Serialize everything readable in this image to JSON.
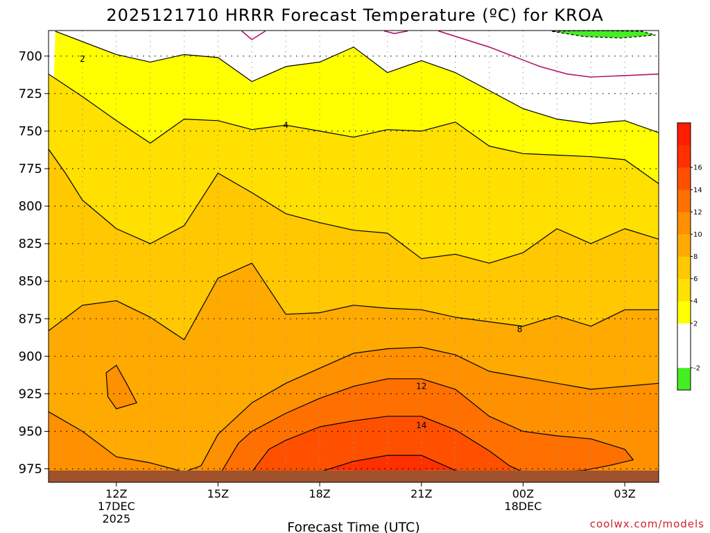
{
  "chart_data": {
    "type": "heatmap",
    "title": "2025121710 HRRR Forecast Temperature (ºC) for KROA",
    "xlabel": "Forecast Time (UTC)",
    "ylabel": "",
    "watermark": "coolwx.com/models",
    "xlim": [
      10.0,
      28.0
    ],
    "ylim": [
      683,
      984
    ],
    "x_ticks": [
      {
        "value": 12,
        "line1": "12Z",
        "line2": "17DEC",
        "line3": "2025"
      },
      {
        "value": 15,
        "line1": "15Z",
        "line2": "",
        "line3": ""
      },
      {
        "value": 18,
        "line1": "18Z",
        "line2": "",
        "line3": ""
      },
      {
        "value": 21,
        "line1": "21Z",
        "line2": "",
        "line3": ""
      },
      {
        "value": 24,
        "line1": "00Z",
        "line2": "18DEC",
        "line3": ""
      },
      {
        "value": 27,
        "line1": "03Z",
        "line2": "",
        "line3": ""
      }
    ],
    "y_ticks": [
      700,
      725,
      750,
      775,
      800,
      825,
      850,
      875,
      900,
      925,
      950,
      975
    ],
    "ground_level_hpa": 977,
    "colorbar": {
      "levels": [
        -4,
        -2,
        0,
        2,
        4,
        6,
        8,
        10,
        12,
        14,
        16,
        18,
        20
      ],
      "labels": [
        "-2",
        "2",
        "4",
        "6",
        "8",
        "10",
        "12",
        "14",
        "16"
      ],
      "colors": [
        "#44ee22",
        "#ffffff",
        "#ffffff",
        "#ffff00",
        "#ffe000",
        "#ffc800",
        "#ffaa00",
        "#ff9000",
        "#ff7000",
        "#ff5000",
        "#ff3000",
        "#ff1c00"
      ]
    },
    "contour_labels": [
      {
        "text": "2",
        "x": 11.0,
        "y": 702
      },
      {
        "text": "4",
        "x": 17.0,
        "y": 746
      },
      {
        "text": "8",
        "x": 23.9,
        "y": 882
      },
      {
        "text": "12",
        "x": 21.0,
        "y": 920
      },
      {
        "text": "14",
        "x": 21.0,
        "y": 946
      }
    ],
    "contours": [
      {
        "name": "contour-minus-2",
        "level": -2,
        "closed": true,
        "x": [
          24.85,
          25.8,
          26.9,
          27.9,
          27.5,
          26.5,
          25.5,
          24.85
        ],
        "y": [
          683.5,
          687,
          688,
          686,
          683.5,
          683.2,
          683.2,
          683.5
        ]
      },
      {
        "name": "contour-0-left",
        "level": 0,
        "closed": false,
        "x": [
          15.7,
          16.0,
          16.4
        ],
        "y": [
          683.3,
          689,
          683.3
        ]
      },
      {
        "name": "contour-0-center",
        "level": 0,
        "closed": false,
        "x": [
          19.9,
          20.2,
          20.6
        ],
        "y": [
          683.3,
          685,
          683.3
        ]
      },
      {
        "name": "contour-0-right",
        "level": 0,
        "closed": false,
        "x": [
          21.5,
          23.0,
          24.5,
          25.3,
          26.0,
          27.0,
          28.0
        ],
        "y": [
          683.3,
          694,
          707,
          712,
          714,
          713,
          712
        ]
      },
      {
        "name": "contour-2",
        "level": 2,
        "closed": false,
        "x": [
          10.2,
          12.0,
          13.0,
          14.0,
          15.0,
          16.0,
          17.0,
          18.0,
          19.0,
          20.0,
          21.0,
          22.0,
          23.0,
          24.0,
          25.0,
          26.0,
          27.0,
          28.0
        ],
        "y": [
          683.5,
          699,
          704,
          699,
          701,
          717,
          707,
          704,
          694,
          711,
          703,
          711,
          723,
          735,
          742,
          745,
          743,
          751
        ]
      },
      {
        "name": "contour-4",
        "level": 4,
        "closed": false,
        "x": [
          10.0,
          11.0,
          12.0,
          13.0,
          14.0,
          15.0,
          16.0,
          17.0,
          18.0,
          19.0,
          20.0,
          21.0,
          22.0,
          23.0,
          24.0,
          25.0,
          26.0,
          27.0,
          28.0
        ],
        "y": [
          712,
          727,
          743,
          758,
          742,
          743,
          749,
          746,
          750,
          754,
          749,
          750,
          744,
          760,
          765,
          766,
          767,
          769,
          785
        ]
      },
      {
        "name": "contour-6",
        "level": 6,
        "closed": false,
        "x": [
          10.0,
          10.5,
          11.0,
          12.0,
          13.0,
          14.0,
          15.0,
          16.0,
          17.0,
          18.0,
          19.0,
          20.0,
          21.0,
          22.0,
          23.0,
          24.0,
          25.0,
          26.0,
          27.0,
          28.0
        ],
        "y": [
          762,
          778,
          796,
          815,
          825,
          813,
          778,
          791,
          805,
          811,
          816,
          818,
          835,
          832,
          838,
          831,
          815,
          825,
          815,
          822
        ]
      },
      {
        "name": "contour-8",
        "level": 8,
        "closed": false,
        "x": [
          10.0,
          11.0,
          12.0,
          13.0,
          14.0,
          15.0,
          16.0,
          17.0,
          18.0,
          19.0,
          20.0,
          21.0,
          22.0,
          23.0,
          24.0,
          25.0,
          26.0,
          27.0,
          28.0
        ],
        "y": [
          883,
          866,
          863,
          874,
          889,
          848,
          838,
          872,
          871,
          866,
          868,
          869,
          874,
          877,
          880,
          873,
          880,
          869,
          869
        ]
      },
      {
        "name": "contour-10-main",
        "level": 10,
        "closed": false,
        "x": [
          10.0,
          11.0,
          12.0,
          13.0,
          14.0,
          14.5,
          15.0,
          16.0,
          17.0,
          18.0,
          19.0,
          20.0,
          21.0,
          22.0,
          23.0,
          24.0,
          25.0,
          26.0,
          27.0,
          28.0
        ],
        "y": [
          937,
          950,
          967,
          971,
          977,
          973,
          952,
          931,
          918,
          908,
          898,
          895,
          894,
          899,
          910,
          914,
          918,
          922,
          920,
          918
        ]
      },
      {
        "name": "contour-10-island",
        "level": 10,
        "closed": true,
        "x": [
          11.7,
          12.0,
          12.3,
          12.6,
          12.0,
          11.75,
          11.7
        ],
        "y": [
          911,
          906,
          918,
          931,
          935,
          927,
          911
        ]
      },
      {
        "name": "contour-12",
        "level": 12,
        "closed": false,
        "x": [
          15.1,
          15.6,
          16.0,
          17.0,
          18.0,
          19.0,
          20.0,
          21.0,
          22.0,
          23.0,
          24.0,
          25.0,
          26.0,
          27.0,
          27.25,
          26.5,
          25.8,
          25.0
        ],
        "y": [
          977,
          958,
          950,
          938,
          928,
          920,
          915,
          915,
          922,
          940,
          950,
          953,
          955,
          962,
          969,
          973,
          976,
          977
        ]
      },
      {
        "name": "contour-14",
        "level": 14,
        "closed": false,
        "x": [
          16.0,
          16.5,
          17.0,
          18.0,
          19.0,
          20.0,
          21.0,
          22.0,
          23.0,
          23.6,
          24.0
        ],
        "y": [
          977,
          962,
          956,
          947,
          943,
          940,
          940,
          949,
          963,
          973,
          977
        ]
      },
      {
        "name": "contour-16",
        "level": 16,
        "closed": false,
        "x": [
          18.0,
          19.0,
          20.0,
          21.0,
          21.5,
          22.0,
          22.2
        ],
        "y": [
          977,
          970,
          966,
          966,
          971,
          976,
          977
        ]
      }
    ]
  }
}
